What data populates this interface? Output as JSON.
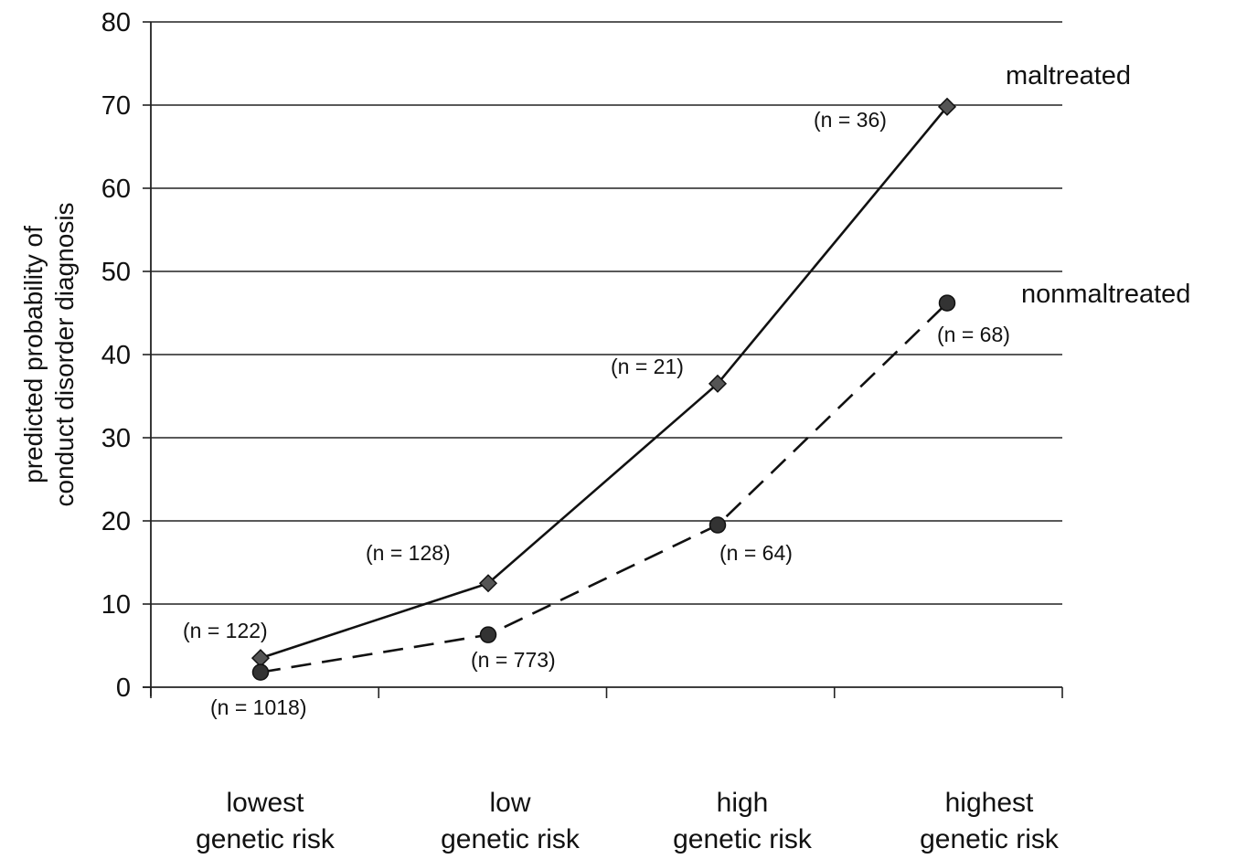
{
  "chart_data": {
    "type": "line",
    "title": "",
    "ylabel_lines": [
      "predicted probability of",
      "conduct disorder diagnosis"
    ],
    "categories": [
      [
        "lowest",
        "genetic risk"
      ],
      [
        "low",
        "genetic risk"
      ],
      [
        "high",
        "genetic risk"
      ],
      [
        "highest",
        "genetic risk"
      ]
    ],
    "ylim": [
      0,
      80
    ],
    "yticks": [
      0,
      10,
      20,
      30,
      40,
      50,
      60,
      70,
      80
    ],
    "grid": true,
    "series": [
      {
        "name": "maltreated",
        "values": [
          3.5,
          12.5,
          36.5,
          69.8
        ],
        "counts": [
          "(n = 122)",
          "(n = 128)",
          "(n = 21)",
          "(n = 36)"
        ],
        "line_style": "solid",
        "marker": "diamond",
        "color": "#111111"
      },
      {
        "name": "nonmaltreated",
        "values": [
          1.8,
          6.3,
          19.5,
          46.2
        ],
        "counts": [
          "(n = 1018)",
          "(n = 773)",
          "(n = 64)",
          "(n = 68)"
        ],
        "line_style": "dashed",
        "marker": "circle",
        "color": "#111111"
      }
    ]
  }
}
